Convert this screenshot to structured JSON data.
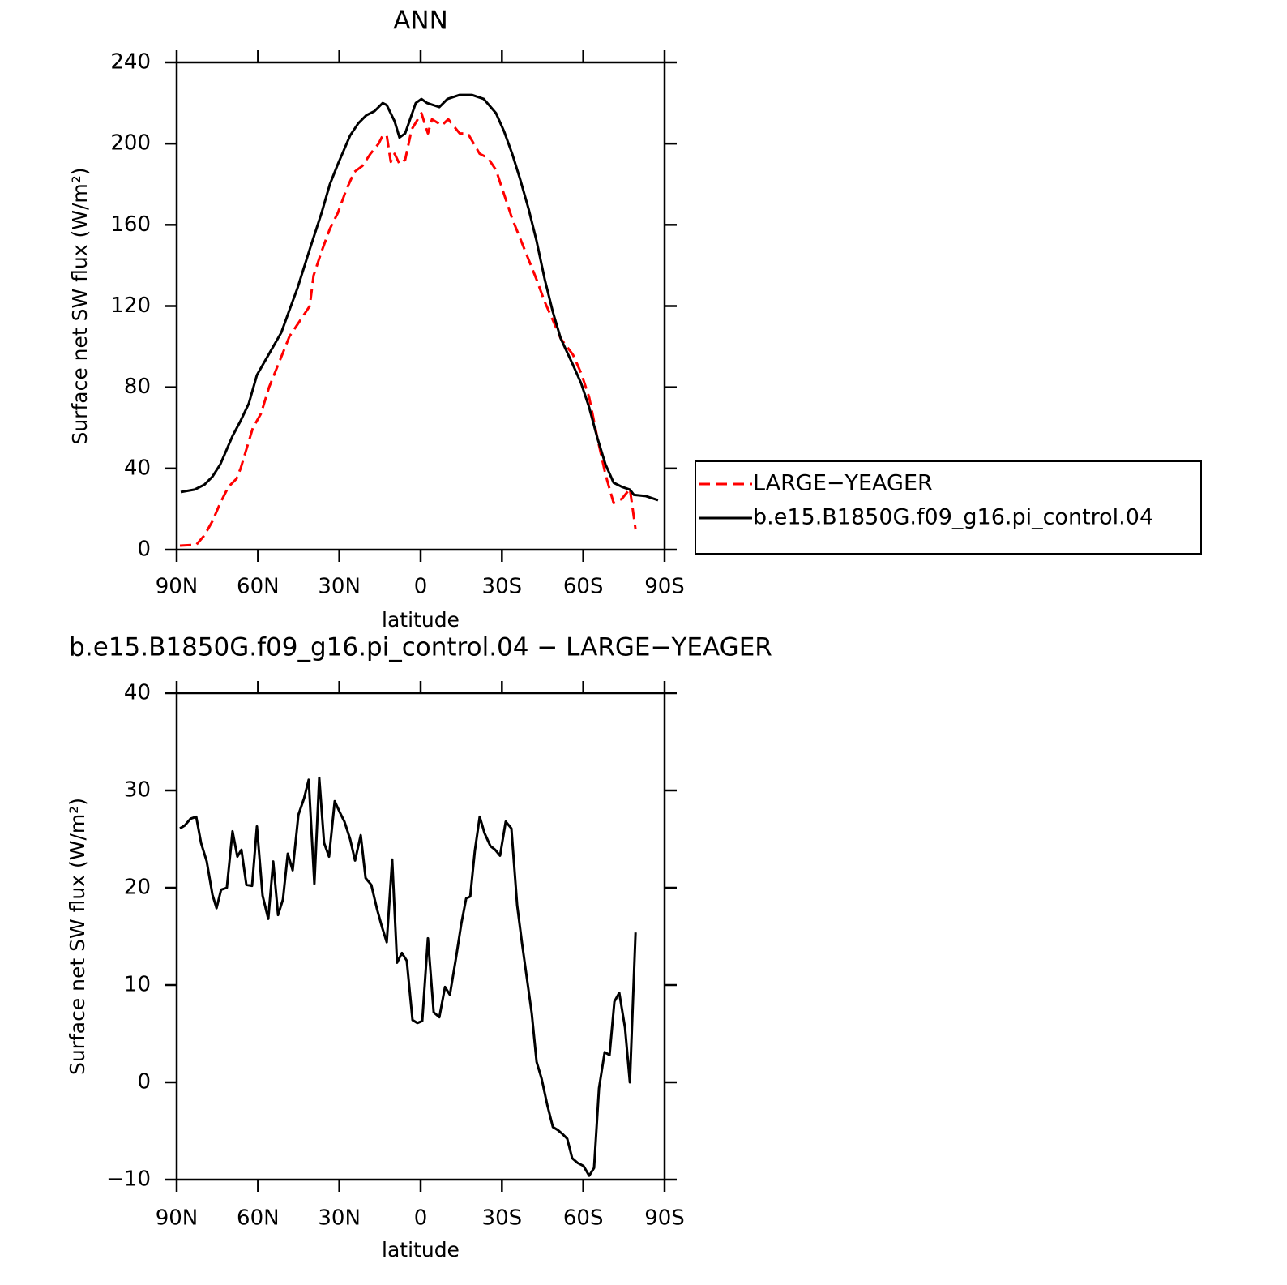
{
  "chart_data": [
    {
      "type": "line",
      "title": "ANN",
      "x_label": "latitude",
      "y_label": "Surface net SW flux (W/m²)",
      "xlim": [
        90,
        -90
      ],
      "xticks": [
        {
          "value": 90,
          "label": "90N"
        },
        {
          "value": 60,
          "label": "60N"
        },
        {
          "value": 30,
          "label": "30N"
        },
        0,
        {
          "value": -30,
          "label": "30S"
        },
        {
          "value": -60,
          "label": "60S"
        },
        {
          "value": -90,
          "label": "90S"
        }
      ],
      "ylim": [
        0,
        240
      ],
      "yticks": [
        0,
        40,
        80,
        120,
        160,
        200,
        240
      ],
      "legend": "right",
      "series": [
        {
          "name": "LARGE−YEAGER",
          "color": "#ff0000",
          "line_style": "dashed",
          "x": [
            88.8,
            82.8,
            79.8,
            76.8,
            73.9,
            70.9,
            67.9,
            66.4,
            61.9,
            58.9,
            55.9,
            51.4,
            48.4,
            45.4,
            40.9,
            39.5,
            36.5,
            33.5,
            30.5,
            27.5,
            24.5,
            21.5,
            18.5,
            15.5,
            14,
            12.5,
            11,
            9.6,
            7.8,
            5.7,
            3.3,
            -0.3,
            -2.7,
            -4.2,
            -7.8,
            -10.2,
            -14.4,
            -17.4,
            -21.8,
            -24.8,
            -27.8,
            -30.8,
            -32.3,
            -33.8,
            -36.8,
            -39.8,
            -42.8,
            -45.8,
            -48.8,
            -51.7,
            -56.2,
            -59.2,
            -62.2,
            -65.2,
            -68.2,
            -71.2,
            -74.2,
            -77.2,
            -79.3
          ],
          "values": [
            2,
            2.4,
            7,
            14,
            23,
            31,
            35,
            40,
            60,
            67,
            80,
            95,
            105,
            111,
            120,
            135,
            147,
            158,
            166,
            177,
            186,
            189,
            195,
            200,
            204,
            204,
            191,
            195,
            190,
            192,
            207,
            215,
            205,
            212,
            209,
            212,
            205,
            205,
            195,
            193,
            187,
            175,
            169,
            163,
            153,
            143,
            133,
            122,
            113,
            104,
            96,
            87,
            75,
            55,
            37,
            23,
            25,
            30,
            10
          ]
        },
        {
          "name": "b.e15.B1850G.f09_g16.pi_control.04",
          "color": "#000000",
          "line_style": "solid",
          "x": [
            88.5,
            83.4,
            79.8,
            76.8,
            73.9,
            69.4,
            66.4,
            63.4,
            60.4,
            57.4,
            51.4,
            48.4,
            45.4,
            40.9,
            36.5,
            33.5,
            30.5,
            26,
            23,
            20,
            17,
            14,
            12.5,
            9.6,
            7.8,
            5.7,
            1.8,
            -0.3,
            -2.4,
            -6.9,
            -9.9,
            -14.4,
            -18.9,
            -23.3,
            -27.8,
            -30.8,
            -33.8,
            -36.8,
            -39.8,
            -42.8,
            -45.8,
            -48.8,
            -51.7,
            -56.2,
            -59.2,
            -62.2,
            -65.2,
            -68.2,
            -71.2,
            -74.2,
            -77.2,
            -78.7,
            -83.1,
            -87.6
          ],
          "values": [
            28.4,
            29.6,
            32,
            36,
            42,
            56,
            63.5,
            72,
            86,
            93,
            107,
            118,
            129,
            148,
            166,
            180,
            190,
            204,
            210,
            214,
            216,
            220,
            219,
            211,
            203,
            205,
            220,
            222,
            220,
            218,
            222,
            224,
            224,
            222,
            215,
            206,
            195,
            182,
            168,
            152,
            133,
            117,
            104,
            91,
            82,
            70,
            55,
            42,
            33,
            31,
            29.6,
            27,
            26.4,
            24.4
          ]
        }
      ]
    },
    {
      "type": "line",
      "title": "b.e15.B1850G.f09_g16.pi_control.04 − LARGE−YEAGER",
      "x_label": "latitude",
      "y_label": "Surface net SW flux (W/m²)",
      "xlim": [
        90,
        -90
      ],
      "xticks": [
        {
          "value": 90,
          "label": "90N"
        },
        {
          "value": 60,
          "label": "60N"
        },
        {
          "value": 30,
          "label": "30N"
        },
        0,
        {
          "value": -30,
          "label": "30S"
        },
        {
          "value": -60,
          "label": "60S"
        },
        {
          "value": -90,
          "label": "90S"
        }
      ],
      "ylim": [
        -10,
        40
      ],
      "yticks": [
        {
          "value": -10,
          "label": "−10"
        },
        0,
        10,
        20,
        30,
        40
      ],
      "color": "#000000",
      "x": [
        88.8,
        87,
        84.9,
        82.8,
        81,
        78.9,
        76.8,
        75.3,
        73.6,
        71.5,
        69.4,
        67.6,
        66.1,
        64.3,
        62.2,
        60.4,
        58.3,
        56.2,
        54.4,
        52.6,
        50.8,
        49,
        47.2,
        45.1,
        43,
        41.3,
        39.2,
        37.4,
        35.6,
        33.8,
        31.7,
        29.9,
        28.1,
        26,
        24.2,
        22.1,
        20.3,
        18.2,
        16.1,
        14.3,
        12.5,
        10.5,
        8.7,
        6.9,
        5.1,
        3,
        1.2,
        -0.6,
        -2.7,
        -4.8,
        -6.9,
        -9,
        -10.8,
        -12.9,
        -15,
        -16.8,
        -18.3,
        -20,
        -21.8,
        -23.6,
        -25.7,
        -27.5,
        -29.3,
        -31.4,
        -33.5,
        -35.6,
        -37.4,
        -39.2,
        -41,
        -42.8,
        -44.6,
        -46.7,
        -48.8,
        -50.6,
        -52.3,
        -54.1,
        -55.9,
        -58,
        -60.1,
        -62.2,
        -64,
        -65.8,
        -67.9,
        -69.7,
        -71.5,
        -73.3,
        -75.4,
        -77.2,
        -79.3
      ],
      "values": [
        26.1,
        26.4,
        27.1,
        27.3,
        24.6,
        22.7,
        19.3,
        17.9,
        19.8,
        20,
        25.8,
        23.2,
        23.9,
        20.3,
        20.2,
        26.3,
        19.2,
        16.8,
        22.7,
        17.2,
        18.8,
        23.5,
        21.8,
        27.5,
        29.2,
        31.1,
        20.4,
        31.3,
        24.6,
        23.2,
        28.9,
        27.8,
        26.8,
        25,
        22.8,
        25.4,
        21,
        20.3,
        17.8,
        16,
        14.4,
        22.9,
        12.3,
        13.3,
        12.5,
        6.4,
        6.1,
        6.3,
        14.8,
        7.2,
        6.7,
        9.8,
        9,
        12.5,
        16.3,
        18.9,
        19.1,
        23.8,
        27.3,
        25.6,
        24.3,
        23.9,
        23.3,
        26.8,
        26.1,
        18.2,
        14.3,
        10.7,
        7.1,
        2.1,
        0.4,
        -2.3,
        -4.6,
        -4.9,
        -5.3,
        -5.8,
        -7.8,
        -8.3,
        -8.6,
        -9.6,
        -8.8,
        -0.6,
        3.1,
        2.8,
        8.3,
        9.2,
        5.6,
        0,
        15.4
      ]
    }
  ]
}
